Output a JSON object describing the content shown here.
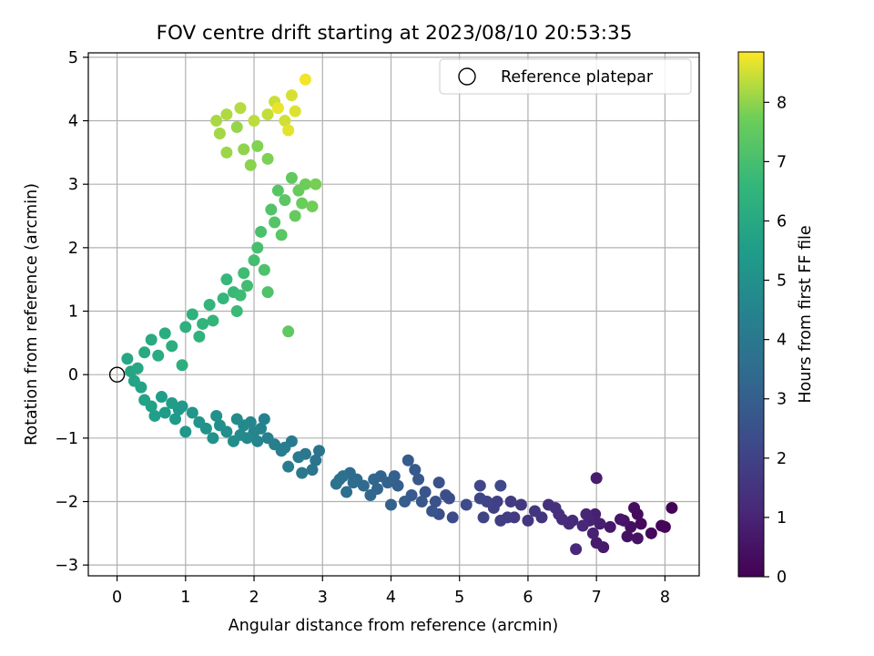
{
  "chart_data": {
    "type": "scatter",
    "title": "FOV centre drift starting at 2023/08/10 20:53:35",
    "xlabel": "Angular distance from reference (arcmin)",
    "ylabel": "Rotation from reference (arcmin)",
    "xlim": [
      -0.42,
      8.5
    ],
    "ylim": [
      -3.17,
      5.07
    ],
    "xticks": [
      0,
      1,
      2,
      3,
      4,
      5,
      6,
      7,
      8
    ],
    "yticks": [
      -3,
      -2,
      -1,
      0,
      1,
      2,
      3,
      4,
      5
    ],
    "grid": true,
    "legend": {
      "position": "top-right",
      "entries": [
        "Reference platepar"
      ]
    },
    "colorbar": {
      "label": "Hours from first FF file",
      "range": [
        0,
        8.85
      ],
      "ticks": [
        0,
        1,
        2,
        3,
        4,
        5,
        6,
        7,
        8
      ],
      "colormap": "viridis"
    },
    "reference_point": {
      "x": 0,
      "y": 0,
      "label": "Reference platepar"
    },
    "points": [
      {
        "x": 8.1,
        "y": -2.1,
        "h": 0.05
      },
      {
        "x": 8.0,
        "y": -2.4,
        "h": 0.1
      },
      {
        "x": 7.95,
        "y": -2.38,
        "h": 0.15
      },
      {
        "x": 7.8,
        "y": -2.5,
        "h": 0.2
      },
      {
        "x": 7.65,
        "y": -2.35,
        "h": 0.25
      },
      {
        "x": 7.6,
        "y": -2.2,
        "h": 0.3
      },
      {
        "x": 7.55,
        "y": -2.1,
        "h": 0.35
      },
      {
        "x": 7.5,
        "y": -2.4,
        "h": 0.4
      },
      {
        "x": 7.45,
        "y": -2.55,
        "h": 0.45
      },
      {
        "x": 7.6,
        "y": -2.58,
        "h": 0.5
      },
      {
        "x": 7.4,
        "y": -2.3,
        "h": 0.55
      },
      {
        "x": 7.35,
        "y": -2.28,
        "h": 0.6
      },
      {
        "x": 7.2,
        "y": -2.4,
        "h": 0.65
      },
      {
        "x": 7.1,
        "y": -2.72,
        "h": 0.7
      },
      {
        "x": 7.0,
        "y": -2.65,
        "h": 0.75
      },
      {
        "x": 7.0,
        "y": -1.63,
        "h": 0.8
      },
      {
        "x": 7.05,
        "y": -2.35,
        "h": 0.85
      },
      {
        "x": 6.98,
        "y": -2.2,
        "h": 0.9
      },
      {
        "x": 6.95,
        "y": -2.5,
        "h": 0.95
      },
      {
        "x": 6.9,
        "y": -2.3,
        "h": 1.0
      },
      {
        "x": 6.85,
        "y": -2.2,
        "h": 1.05
      },
      {
        "x": 6.8,
        "y": -2.38,
        "h": 1.1
      },
      {
        "x": 6.7,
        "y": -2.75,
        "h": 1.15
      },
      {
        "x": 6.65,
        "y": -2.3,
        "h": 1.2
      },
      {
        "x": 6.6,
        "y": -2.35,
        "h": 1.25
      },
      {
        "x": 6.5,
        "y": -2.28,
        "h": 1.3
      },
      {
        "x": 6.45,
        "y": -2.2,
        "h": 1.35
      },
      {
        "x": 6.4,
        "y": -2.1,
        "h": 1.4
      },
      {
        "x": 6.3,
        "y": -2.05,
        "h": 1.45
      },
      {
        "x": 6.2,
        "y": -2.25,
        "h": 1.5
      },
      {
        "x": 6.1,
        "y": -2.15,
        "h": 1.55
      },
      {
        "x": 6.0,
        "y": -2.3,
        "h": 1.6
      },
      {
        "x": 5.9,
        "y": -2.05,
        "h": 1.65
      },
      {
        "x": 5.8,
        "y": -2.25,
        "h": 1.7
      },
      {
        "x": 5.75,
        "y": -2.0,
        "h": 1.75
      },
      {
        "x": 5.7,
        "y": -2.25,
        "h": 1.8
      },
      {
        "x": 5.6,
        "y": -2.3,
        "h": 1.85
      },
      {
        "x": 5.55,
        "y": -2.0,
        "h": 1.9
      },
      {
        "x": 5.5,
        "y": -2.1,
        "h": 1.95
      },
      {
        "x": 5.4,
        "y": -2.0,
        "h": 2.0
      },
      {
        "x": 5.35,
        "y": -2.25,
        "h": 2.05
      },
      {
        "x": 5.3,
        "y": -1.95,
        "h": 2.1
      },
      {
        "x": 5.3,
        "y": -1.75,
        "h": 2.15
      },
      {
        "x": 5.6,
        "y": -1.75,
        "h": 2.2
      },
      {
        "x": 5.1,
        "y": -2.05,
        "h": 2.25
      },
      {
        "x": 4.9,
        "y": -2.25,
        "h": 2.3
      },
      {
        "x": 4.85,
        "y": -1.95,
        "h": 2.35
      },
      {
        "x": 4.8,
        "y": -1.9,
        "h": 2.4
      },
      {
        "x": 4.7,
        "y": -2.2,
        "h": 2.45
      },
      {
        "x": 4.7,
        "y": -1.7,
        "h": 2.5
      },
      {
        "x": 4.65,
        "y": -2.0,
        "h": 2.55
      },
      {
        "x": 4.6,
        "y": -2.15,
        "h": 2.6
      },
      {
        "x": 4.5,
        "y": -1.85,
        "h": 2.65
      },
      {
        "x": 4.45,
        "y": -2.0,
        "h": 2.7
      },
      {
        "x": 4.4,
        "y": -1.65,
        "h": 2.75
      },
      {
        "x": 4.35,
        "y": -1.5,
        "h": 2.8
      },
      {
        "x": 4.3,
        "y": -1.9,
        "h": 2.85
      },
      {
        "x": 4.25,
        "y": -1.35,
        "h": 2.9
      },
      {
        "x": 4.2,
        "y": -2.0,
        "h": 2.95
      },
      {
        "x": 4.1,
        "y": -1.75,
        "h": 3.0
      },
      {
        "x": 4.05,
        "y": -1.6,
        "h": 3.05
      },
      {
        "x": 4.0,
        "y": -2.05,
        "h": 3.1
      },
      {
        "x": 3.95,
        "y": -1.7,
        "h": 3.15
      },
      {
        "x": 3.85,
        "y": -1.6,
        "h": 3.2
      },
      {
        "x": 3.8,
        "y": -1.8,
        "h": 3.25
      },
      {
        "x": 3.75,
        "y": -1.65,
        "h": 3.3
      },
      {
        "x": 3.7,
        "y": -1.9,
        "h": 3.35
      },
      {
        "x": 3.6,
        "y": -1.75,
        "h": 3.4
      },
      {
        "x": 3.5,
        "y": -1.65,
        "h": 3.45
      },
      {
        "x": 3.45,
        "y": -1.7,
        "h": 3.5
      },
      {
        "x": 3.4,
        "y": -1.55,
        "h": 3.55
      },
      {
        "x": 3.35,
        "y": -1.85,
        "h": 3.6
      },
      {
        "x": 3.3,
        "y": -1.6,
        "h": 3.65
      },
      {
        "x": 3.25,
        "y": -1.65,
        "h": 3.7
      },
      {
        "x": 3.2,
        "y": -1.72,
        "h": 3.75
      },
      {
        "x": 2.95,
        "y": -1.2,
        "h": 3.8
      },
      {
        "x": 2.9,
        "y": -1.35,
        "h": 3.85
      },
      {
        "x": 2.85,
        "y": -1.5,
        "h": 3.9
      },
      {
        "x": 2.75,
        "y": -1.25,
        "h": 3.95
      },
      {
        "x": 2.7,
        "y": -1.55,
        "h": 4.0
      },
      {
        "x": 2.65,
        "y": -1.3,
        "h": 4.05
      },
      {
        "x": 2.55,
        "y": -1.05,
        "h": 4.1
      },
      {
        "x": 2.5,
        "y": -1.45,
        "h": 4.15
      },
      {
        "x": 2.45,
        "y": -1.15,
        "h": 4.2
      },
      {
        "x": 2.4,
        "y": -1.2,
        "h": 4.25
      },
      {
        "x": 2.3,
        "y": -1.1,
        "h": 4.3
      },
      {
        "x": 2.2,
        "y": -1.0,
        "h": 4.35
      },
      {
        "x": 2.15,
        "y": -0.7,
        "h": 4.4
      },
      {
        "x": 2.1,
        "y": -0.85,
        "h": 4.45
      },
      {
        "x": 2.05,
        "y": -1.05,
        "h": 4.5
      },
      {
        "x": 2.0,
        "y": -0.9,
        "h": 4.55
      },
      {
        "x": 1.95,
        "y": -0.75,
        "h": 4.6
      },
      {
        "x": 1.9,
        "y": -1.0,
        "h": 4.65
      },
      {
        "x": 1.85,
        "y": -0.8,
        "h": 4.7
      },
      {
        "x": 1.8,
        "y": -0.95,
        "h": 4.75
      },
      {
        "x": 1.75,
        "y": -0.7,
        "h": 4.8
      },
      {
        "x": 1.7,
        "y": -1.05,
        "h": 4.85
      },
      {
        "x": 1.6,
        "y": -0.9,
        "h": 4.9
      },
      {
        "x": 1.5,
        "y": -0.8,
        "h": 4.95
      },
      {
        "x": 1.45,
        "y": -0.65,
        "h": 5.0
      },
      {
        "x": 1.4,
        "y": -1.0,
        "h": 5.05
      },
      {
        "x": 1.3,
        "y": -0.85,
        "h": 5.1
      },
      {
        "x": 1.2,
        "y": -0.75,
        "h": 5.15
      },
      {
        "x": 1.1,
        "y": -0.6,
        "h": 5.2
      },
      {
        "x": 1.0,
        "y": -0.9,
        "h": 5.25
      },
      {
        "x": 0.95,
        "y": -0.5,
        "h": 5.3
      },
      {
        "x": 0.9,
        "y": -0.55,
        "h": 5.35
      },
      {
        "x": 0.85,
        "y": -0.7,
        "h": 5.4
      },
      {
        "x": 0.8,
        "y": -0.45,
        "h": 5.45
      },
      {
        "x": 0.7,
        "y": -0.6,
        "h": 5.5
      },
      {
        "x": 0.65,
        "y": -0.35,
        "h": 5.55
      },
      {
        "x": 0.55,
        "y": -0.65,
        "h": 5.6
      },
      {
        "x": 0.5,
        "y": -0.5,
        "h": 5.65
      },
      {
        "x": 0.4,
        "y": -0.4,
        "h": 5.7
      },
      {
        "x": 0.35,
        "y": -0.2,
        "h": 5.75
      },
      {
        "x": 0.25,
        "y": -0.1,
        "h": 5.8
      },
      {
        "x": 0.2,
        "y": 0.05,
        "h": 5.85
      },
      {
        "x": 0.15,
        "y": 0.25,
        "h": 5.9
      },
      {
        "x": 0.3,
        "y": 0.1,
        "h": 5.95
      },
      {
        "x": 0.4,
        "y": 0.35,
        "h": 6.0
      },
      {
        "x": 0.5,
        "y": 0.55,
        "h": 6.05
      },
      {
        "x": 0.6,
        "y": 0.3,
        "h": 6.1
      },
      {
        "x": 0.7,
        "y": 0.65,
        "h": 6.15
      },
      {
        "x": 0.8,
        "y": 0.45,
        "h": 6.2
      },
      {
        "x": 0.95,
        "y": 0.15,
        "h": 6.25
      },
      {
        "x": 1.0,
        "y": 0.75,
        "h": 6.3
      },
      {
        "x": 1.1,
        "y": 0.95,
        "h": 6.35
      },
      {
        "x": 1.2,
        "y": 0.6,
        "h": 6.4
      },
      {
        "x": 1.25,
        "y": 0.8,
        "h": 6.45
      },
      {
        "x": 1.35,
        "y": 1.1,
        "h": 6.5
      },
      {
        "x": 1.4,
        "y": 0.85,
        "h": 6.55
      },
      {
        "x": 1.55,
        "y": 1.2,
        "h": 6.6
      },
      {
        "x": 1.6,
        "y": 1.5,
        "h": 6.65
      },
      {
        "x": 1.7,
        "y": 1.3,
        "h": 6.7
      },
      {
        "x": 1.75,
        "y": 1.0,
        "h": 6.75
      },
      {
        "x": 1.8,
        "y": 1.25,
        "h": 6.8
      },
      {
        "x": 1.85,
        "y": 1.6,
        "h": 6.85
      },
      {
        "x": 1.9,
        "y": 1.4,
        "h": 6.9
      },
      {
        "x": 2.0,
        "y": 1.8,
        "h": 6.95
      },
      {
        "x": 2.05,
        "y": 2.0,
        "h": 7.0
      },
      {
        "x": 2.1,
        "y": 2.25,
        "h": 7.05
      },
      {
        "x": 2.15,
        "y": 1.65,
        "h": 7.1
      },
      {
        "x": 2.2,
        "y": 1.3,
        "h": 7.15
      },
      {
        "x": 2.25,
        "y": 2.6,
        "h": 7.2
      },
      {
        "x": 2.3,
        "y": 2.4,
        "h": 7.25
      },
      {
        "x": 2.35,
        "y": 2.9,
        "h": 7.3
      },
      {
        "x": 2.4,
        "y": 2.2,
        "h": 7.35
      },
      {
        "x": 2.45,
        "y": 2.75,
        "h": 7.4
      },
      {
        "x": 2.5,
        "y": 0.68,
        "h": 7.45
      },
      {
        "x": 2.55,
        "y": 3.1,
        "h": 7.5
      },
      {
        "x": 2.6,
        "y": 2.5,
        "h": 7.55
      },
      {
        "x": 2.65,
        "y": 2.9,
        "h": 7.6
      },
      {
        "x": 2.7,
        "y": 2.7,
        "h": 7.65
      },
      {
        "x": 2.75,
        "y": 3.0,
        "h": 7.7
      },
      {
        "x": 2.85,
        "y": 2.65,
        "h": 7.75
      },
      {
        "x": 2.9,
        "y": 3.0,
        "h": 7.8
      },
      {
        "x": 2.2,
        "y": 3.4,
        "h": 7.85
      },
      {
        "x": 2.05,
        "y": 3.6,
        "h": 7.9
      },
      {
        "x": 1.95,
        "y": 3.3,
        "h": 7.95
      },
      {
        "x": 1.85,
        "y": 3.55,
        "h": 8.0
      },
      {
        "x": 1.75,
        "y": 3.9,
        "h": 8.05
      },
      {
        "x": 1.6,
        "y": 3.5,
        "h": 8.1
      },
      {
        "x": 1.5,
        "y": 3.8,
        "h": 8.15
      },
      {
        "x": 1.45,
        "y": 4.0,
        "h": 8.2
      },
      {
        "x": 1.6,
        "y": 4.1,
        "h": 8.25
      },
      {
        "x": 1.8,
        "y": 4.2,
        "h": 8.3
      },
      {
        "x": 2.0,
        "y": 4.0,
        "h": 8.35
      },
      {
        "x": 2.2,
        "y": 4.1,
        "h": 8.4
      },
      {
        "x": 2.3,
        "y": 4.3,
        "h": 8.45
      },
      {
        "x": 2.45,
        "y": 4.0,
        "h": 8.5
      },
      {
        "x": 2.55,
        "y": 4.4,
        "h": 8.55
      },
      {
        "x": 2.6,
        "y": 4.15,
        "h": 8.6
      },
      {
        "x": 2.5,
        "y": 3.85,
        "h": 8.65
      },
      {
        "x": 2.35,
        "y": 4.2,
        "h": 8.7
      },
      {
        "x": 2.75,
        "y": 4.65,
        "h": 8.75
      }
    ]
  }
}
